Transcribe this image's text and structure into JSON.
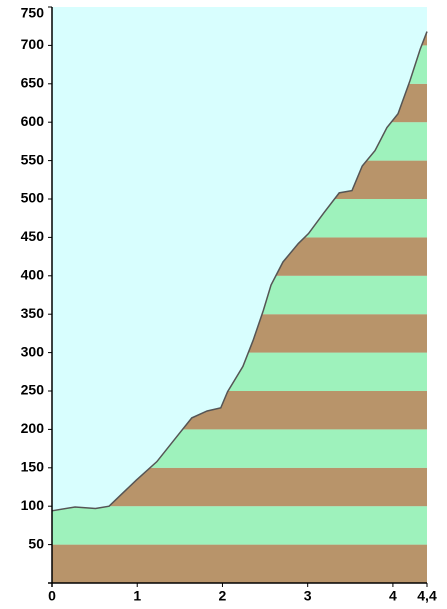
{
  "chart_data": {
    "type": "area",
    "x": [
      0,
      0.27,
      0.51,
      0.67,
      0.81,
      0.99,
      1.23,
      1.46,
      1.64,
      1.82,
      1.98,
      2.06,
      2.24,
      2.36,
      2.48,
      2.57,
      2.71,
      2.89,
      3.01,
      3.19,
      3.37,
      3.52,
      3.64,
      3.79,
      3.93,
      4.06,
      4.2,
      4.32,
      4.4
    ],
    "values": [
      94,
      99,
      97,
      100,
      115,
      134,
      158,
      190,
      215,
      224,
      228,
      249,
      282,
      316,
      355,
      388,
      418,
      442,
      455,
      482,
      508,
      511,
      543,
      563,
      593,
      611,
      654,
      695,
      718
    ],
    "xlim": [
      0,
      4.4
    ],
    "xticks": [
      0,
      1,
      2,
      3,
      4,
      {
        "value": 4.4,
        "label": "4,4"
      }
    ],
    "ylim": [
      0,
      750
    ],
    "yticks": [
      50,
      100,
      150,
      200,
      250,
      300,
      350,
      400,
      450,
      500,
      550,
      600,
      650,
      700,
      750
    ],
    "background": "#d8fefe",
    "band_colors": [
      "#b8946a",
      "#9ef2bc"
    ],
    "line_color": "#555555"
  }
}
